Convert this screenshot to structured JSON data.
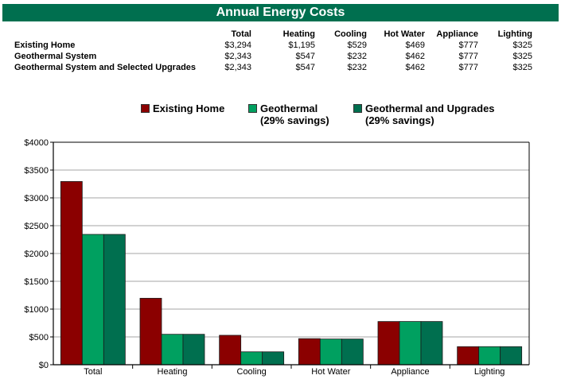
{
  "title": "Annual Energy Costs",
  "table": {
    "columns": [
      "Total",
      "Heating",
      "Cooling",
      "Hot Water",
      "Appliance",
      "Lighting"
    ],
    "rows": [
      {
        "label": "Existing Home",
        "values": [
          "$3,294",
          "$1,195",
          "$529",
          "$469",
          "$777",
          "$325"
        ]
      },
      {
        "label": "Geothermal System",
        "values": [
          "$2,343",
          "$547",
          "$232",
          "$462",
          "$777",
          "$325"
        ]
      },
      {
        "label": "Geothermal System and Selected Upgrades",
        "values": [
          "$2,343",
          "$547",
          "$232",
          "$462",
          "$777",
          "$325"
        ]
      }
    ]
  },
  "legend": [
    {
      "name": "Existing Home",
      "line2": ""
    },
    {
      "name": "Geothermal",
      "line2": "(29% savings)"
    },
    {
      "name": "Geothermal and Upgrades",
      "line2": "(29% savings)"
    }
  ],
  "colors": {
    "banner": "#006f4f",
    "existing": "#8b0000",
    "geothermal": "#00a060",
    "upgrades": "#006f4f"
  },
  "chart_data": {
    "type": "bar",
    "categories": [
      "Total",
      "Heating",
      "Cooling",
      "Hot Water",
      "Appliance",
      "Lighting"
    ],
    "series": [
      {
        "name": "Existing Home",
        "values": [
          3294,
          1195,
          529,
          469,
          777,
          325
        ]
      },
      {
        "name": "Geothermal",
        "values": [
          2343,
          547,
          232,
          462,
          777,
          325
        ]
      },
      {
        "name": "Geothermal and Upgrades",
        "values": [
          2343,
          547,
          232,
          462,
          777,
          325
        ]
      }
    ],
    "ylim": [
      0,
      4000
    ],
    "yticks": [
      0,
      500,
      1000,
      1500,
      2000,
      2500,
      3000,
      3500,
      4000
    ],
    "ytick_labels": [
      "$0",
      "$500",
      "$1000",
      "$1500",
      "$2000",
      "$2500",
      "$3000",
      "$3500",
      "$4000"
    ],
    "grid": true,
    "legend_position": "top"
  }
}
